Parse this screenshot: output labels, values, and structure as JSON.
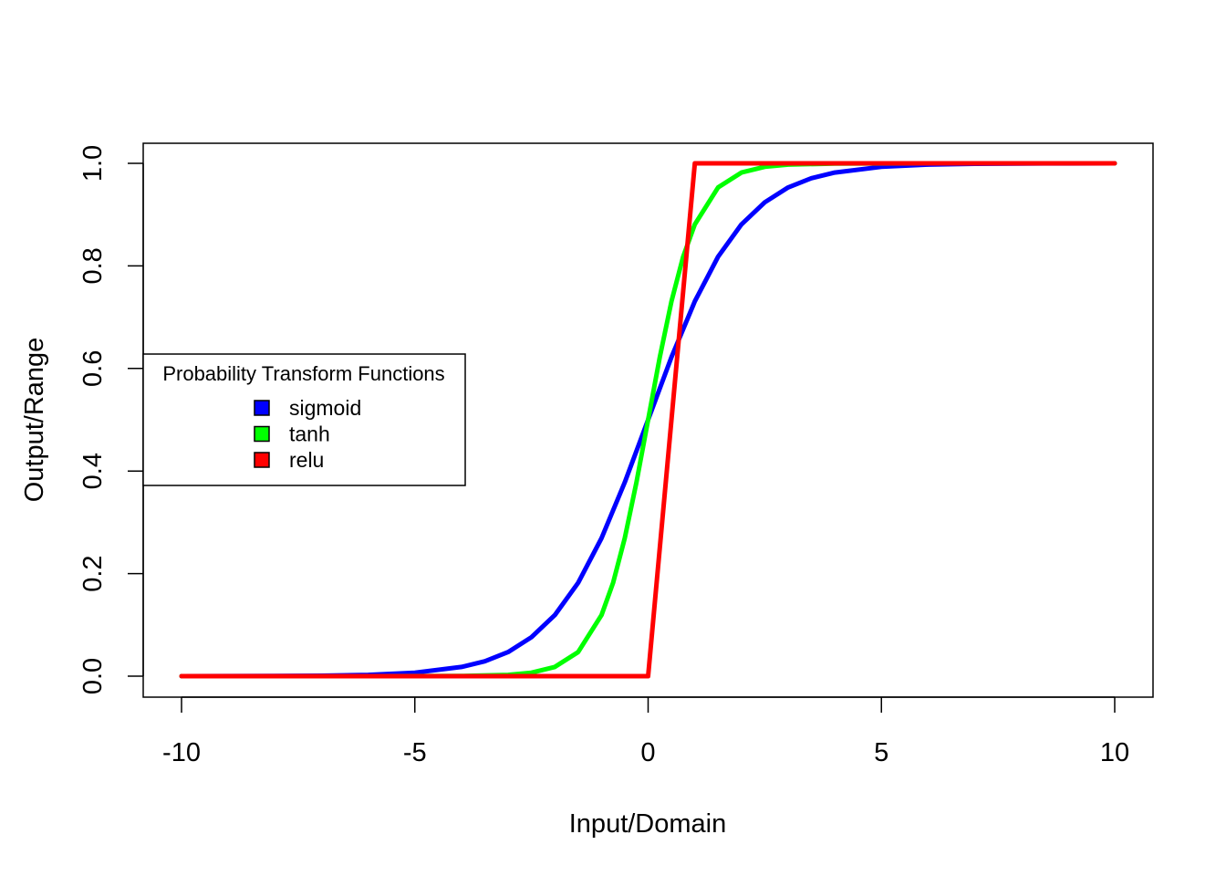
{
  "chart_data": {
    "type": "line",
    "title": "",
    "xlabel": "Input/Domain",
    "ylabel": "Output/Range",
    "xlim": [
      -10,
      10
    ],
    "ylim": [
      0,
      1
    ],
    "x_ticks": [
      -10,
      -5,
      0,
      5,
      10
    ],
    "x_tick_labels": [
      "-10",
      "-5",
      "0",
      "5",
      "10"
    ],
    "y_ticks": [
      0,
      0.2,
      0.4,
      0.6,
      0.8,
      1
    ],
    "y_tick_labels": [
      "0.0",
      "0.2",
      "0.4",
      "0.6",
      "0.8",
      "1.0"
    ],
    "grid": false,
    "legend": {
      "title": "Probability Transform Functions",
      "position": "left",
      "entries": [
        "sigmoid",
        "tanh",
        "relu"
      ]
    },
    "series": [
      {
        "name": "sigmoid",
        "color": "#0000ff",
        "x": [
          -10,
          -9,
          -8,
          -7,
          -6,
          -5,
          -4,
          -3.5,
          -3,
          -2.5,
          -2,
          -1.5,
          -1,
          -0.5,
          0,
          0.5,
          1,
          1.5,
          2,
          2.5,
          3,
          3.5,
          4,
          5,
          6,
          7,
          8,
          9,
          10
        ],
        "values": [
          5e-05,
          0.0001,
          0.0003,
          0.0009,
          0.0025,
          0.0067,
          0.018,
          0.029,
          0.047,
          0.076,
          0.119,
          0.182,
          0.269,
          0.378,
          0.5,
          0.622,
          0.731,
          0.818,
          0.881,
          0.924,
          0.953,
          0.971,
          0.982,
          0.9933,
          0.9975,
          0.9991,
          0.9997,
          0.9999,
          0.99995
        ]
      },
      {
        "name": "tanh",
        "color": "#00ff00",
        "x": [
          -10,
          -8,
          -6,
          -4,
          -3,
          -2.5,
          -2,
          -1.5,
          -1,
          -0.75,
          -0.5,
          -0.25,
          0,
          0.25,
          0.5,
          0.75,
          1,
          1.5,
          2,
          2.5,
          3,
          4,
          6,
          8,
          10
        ],
        "values": [
          0,
          0,
          0,
          0.0003,
          0.0025,
          0.0067,
          0.018,
          0.047,
          0.119,
          0.182,
          0.269,
          0.378,
          0.5,
          0.622,
          0.731,
          0.818,
          0.881,
          0.953,
          0.982,
          0.9933,
          0.9975,
          0.9997,
          1,
          1,
          1
        ]
      },
      {
        "name": "relu",
        "color": "#ff0000",
        "x": [
          -10,
          0,
          1,
          10
        ],
        "values": [
          0,
          0,
          1,
          1
        ]
      }
    ]
  }
}
